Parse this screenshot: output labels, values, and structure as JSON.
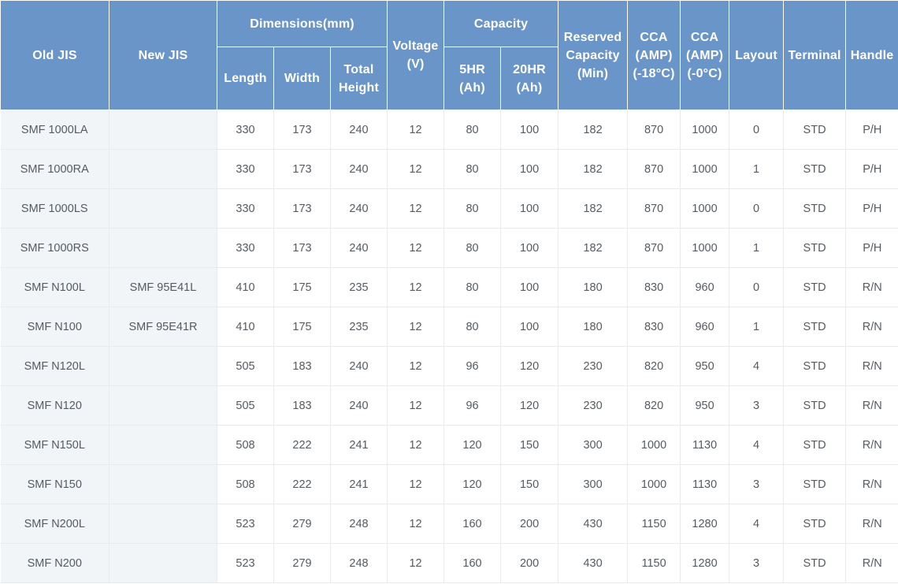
{
  "headers": {
    "old_jis": "Old JIS",
    "new_jis": "New JIS",
    "dimensions": "Dimensions(mm)",
    "length": "Length",
    "width": "Width",
    "total_height": "Total Height",
    "voltage": "Voltage (V)",
    "capacity": "Capacity",
    "hr5": "5HR (Ah)",
    "hr20": "20HR (Ah)",
    "reserved_capacity": "Reserved Capacity (Min)",
    "cca_18": "CCA (AMP) (-18°C)",
    "cca_0": "CCA (AMP) (-0°C)",
    "layout": "Layout",
    "terminal": "Terminal",
    "handle": "Handle"
  },
  "rows": [
    [
      "SMF 1000LA",
      "",
      "330",
      "173",
      "240",
      "12",
      "80",
      "100",
      "182",
      "870",
      "1000",
      "0",
      "STD",
      "P/H"
    ],
    [
      "SMF 1000RA",
      "",
      "330",
      "173",
      "240",
      "12",
      "80",
      "100",
      "182",
      "870",
      "1000",
      "1",
      "STD",
      "P/H"
    ],
    [
      "SMF 1000LS",
      "",
      "330",
      "173",
      "240",
      "12",
      "80",
      "100",
      "182",
      "870",
      "1000",
      "0",
      "STD",
      "P/H"
    ],
    [
      "SMF 1000RS",
      "",
      "330",
      "173",
      "240",
      "12",
      "80",
      "100",
      "182",
      "870",
      "1000",
      "1",
      "STD",
      "P/H"
    ],
    [
      "SMF N100L",
      "SMF 95E41L",
      "410",
      "175",
      "235",
      "12",
      "80",
      "100",
      "180",
      "830",
      "960",
      "0",
      "STD",
      "R/N"
    ],
    [
      "SMF N100",
      "SMF 95E41R",
      "410",
      "175",
      "235",
      "12",
      "80",
      "100",
      "180",
      "830",
      "960",
      "1",
      "STD",
      "R/N"
    ],
    [
      "SMF N120L",
      "",
      "505",
      "183",
      "240",
      "12",
      "96",
      "120",
      "230",
      "820",
      "950",
      "4",
      "STD",
      "R/N"
    ],
    [
      "SMF N120",
      "",
      "505",
      "183",
      "240",
      "12",
      "96",
      "120",
      "230",
      "820",
      "950",
      "3",
      "STD",
      "R/N"
    ],
    [
      "SMF N150L",
      "",
      "508",
      "222",
      "241",
      "12",
      "120",
      "150",
      "300",
      "1000",
      "1130",
      "4",
      "STD",
      "R/N"
    ],
    [
      "SMF N150",
      "",
      "508",
      "222",
      "241",
      "12",
      "120",
      "150",
      "300",
      "1000",
      "1130",
      "3",
      "STD",
      "R/N"
    ],
    [
      "SMF N200L",
      "",
      "523",
      "279",
      "248",
      "12",
      "160",
      "200",
      "430",
      "1150",
      "1280",
      "4",
      "STD",
      "R/N"
    ],
    [
      "SMF N200",
      "",
      "523",
      "279",
      "248",
      "12",
      "160",
      "200",
      "430",
      "1150",
      "1280",
      "3",
      "STD",
      "R/N"
    ]
  ]
}
